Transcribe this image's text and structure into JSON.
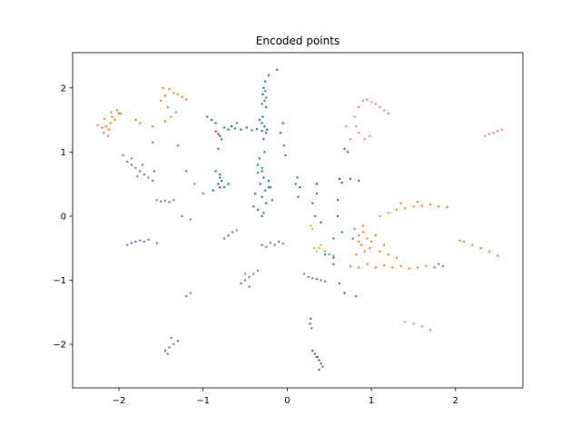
{
  "chart_data": {
    "type": "scatter",
    "title": "Encoded points",
    "xlabel": "",
    "ylabel": "",
    "xlim": [
      -2.55,
      2.8
    ],
    "ylim": [
      -2.68,
      2.55
    ],
    "grid": false,
    "x_ticks": [
      -2,
      -1,
      0,
      1,
      2
    ],
    "y_ticks": [
      -2,
      -1,
      0,
      1,
      2
    ],
    "tick_labels_x": [
      "−2",
      "−1",
      "0",
      "1",
      "2"
    ],
    "tick_labels_y": [
      "−2",
      "−1",
      "0",
      "1",
      "2"
    ],
    "series": [
      {
        "color": "#1f77b4",
        "points": [
          [
            -0.28,
            2.0
          ],
          [
            -0.26,
            1.95
          ],
          [
            -0.29,
            1.9
          ],
          [
            -0.25,
            1.85
          ],
          [
            -0.27,
            1.8
          ],
          [
            -0.3,
            1.75
          ],
          [
            -0.26,
            2.1
          ],
          [
            -0.22,
            2.2
          ],
          [
            -0.12,
            2.28
          ],
          [
            -0.25,
            1.7
          ],
          [
            -0.3,
            1.45
          ],
          [
            -0.27,
            1.4
          ],
          [
            -0.25,
            1.3
          ],
          [
            -0.28,
            1.2
          ],
          [
            -0.33,
            1.5
          ],
          [
            -0.29,
            1.55
          ],
          [
            -0.75,
            1.38
          ],
          [
            -0.7,
            1.35
          ],
          [
            -0.62,
            1.37
          ],
          [
            -0.55,
            1.35
          ],
          [
            -0.48,
            1.38
          ],
          [
            -0.42,
            1.34
          ],
          [
            -0.36,
            1.36
          ],
          [
            -0.3,
            1.33
          ],
          [
            -0.24,
            1.35
          ],
          [
            -0.66,
            1.4
          ],
          [
            -0.95,
            1.55
          ],
          [
            -0.9,
            1.5
          ],
          [
            -0.85,
            1.45
          ],
          [
            -0.8,
            1.25
          ],
          [
            -0.78,
            1.2
          ],
          [
            -0.82,
            1.05
          ],
          [
            -0.85,
            0.7
          ],
          [
            -0.8,
            0.65
          ],
          [
            -0.78,
            0.55
          ],
          [
            -0.82,
            0.5
          ],
          [
            -0.75,
            0.45
          ],
          [
            -0.88,
            0.4
          ],
          [
            -0.8,
            0.6
          ],
          [
            -0.7,
            0.5
          ],
          [
            -0.35,
            0.8
          ],
          [
            -0.3,
            0.7
          ],
          [
            -0.28,
            0.6
          ],
          [
            -0.32,
            0.5
          ],
          [
            -0.26,
            0.4
          ],
          [
            -0.3,
            0.3
          ],
          [
            -0.25,
            0.2
          ],
          [
            -0.35,
            0.1
          ],
          [
            -0.28,
            0.05
          ],
          [
            -0.3,
            0.0
          ],
          [
            -0.22,
            0.55
          ],
          [
            -0.2,
            0.45
          ],
          [
            -0.38,
            0.35
          ],
          [
            -0.4,
            0.15
          ],
          [
            -0.18,
            0.25
          ],
          [
            -0.33,
            0.9
          ],
          [
            -0.27,
            1.0
          ],
          [
            -0.05,
            1.45
          ],
          [
            -0.08,
            1.3
          ],
          [
            -0.04,
            1.1
          ],
          [
            -0.02,
            0.95
          ],
          [
            0.12,
            0.6
          ],
          [
            0.1,
            0.5
          ],
          [
            0.15,
            0.45
          ],
          [
            0.13,
            0.3
          ],
          [
            0.35,
            0.35
          ],
          [
            0.3,
            0.2
          ],
          [
            0.33,
            0.0
          ],
          [
            0.4,
            -0.1
          ],
          [
            0.6,
            0.0
          ],
          [
            0.65,
            -0.25
          ],
          [
            0.55,
            -0.35
          ],
          [
            0.45,
            -0.6
          ],
          [
            0.55,
            -0.75
          ],
          [
            0.62,
            -1.05
          ],
          [
            0.68,
            -1.2
          ],
          [
            0.85,
            0.55
          ],
          [
            0.75,
            0.58
          ]
        ]
      },
      {
        "color": "#ff7f0e",
        "points": [
          [
            -2.15,
            1.4
          ],
          [
            -2.12,
            1.35
          ],
          [
            -2.18,
            1.3
          ],
          [
            -2.1,
            1.45
          ],
          [
            -2.05,
            1.5
          ],
          [
            -2.08,
            1.55
          ],
          [
            -2.0,
            1.6
          ],
          [
            -2.2,
            1.38
          ],
          [
            -2.25,
            1.42
          ],
          [
            -2.13,
            1.25
          ],
          [
            -2.17,
            1.52
          ],
          [
            -2.02,
            1.65
          ],
          [
            -1.98,
            1.6
          ],
          [
            -2.09,
            1.62
          ],
          [
            -1.48,
            2.0
          ],
          [
            -1.4,
            1.98
          ],
          [
            -1.35,
            1.92
          ],
          [
            -1.3,
            1.9
          ],
          [
            -1.25,
            1.86
          ],
          [
            -1.2,
            1.82
          ],
          [
            -1.45,
            1.88
          ],
          [
            -1.5,
            1.8
          ],
          [
            -1.42,
            1.7
          ],
          [
            -1.38,
            1.55
          ],
          [
            -1.45,
            1.48
          ],
          [
            -1.32,
            1.62
          ],
          [
            -1.75,
            1.45
          ],
          [
            -1.6,
            1.4
          ],
          [
            -1.8,
            1.5
          ],
          [
            0.8,
            -0.2
          ],
          [
            0.85,
            -0.3
          ],
          [
            0.9,
            -0.25
          ],
          [
            0.95,
            -0.35
          ],
          [
            1.0,
            -0.4
          ],
          [
            0.88,
            -0.45
          ],
          [
            0.92,
            -0.55
          ],
          [
            0.82,
            -0.6
          ],
          [
            1.05,
            -0.3
          ],
          [
            0.98,
            -0.5
          ],
          [
            0.9,
            -0.15
          ],
          [
            0.85,
            -0.4
          ],
          [
            0.75,
            -0.78
          ],
          [
            0.85,
            -0.8
          ],
          [
            0.95,
            -0.75
          ],
          [
            1.05,
            -0.8
          ],
          [
            1.15,
            -0.77
          ],
          [
            1.25,
            -0.8
          ],
          [
            1.35,
            -0.78
          ],
          [
            1.45,
            -0.82
          ],
          [
            1.55,
            -0.8
          ],
          [
            1.65,
            -0.78
          ],
          [
            1.75,
            -0.8
          ],
          [
            1.1,
            0.0
          ],
          [
            1.2,
            0.05
          ],
          [
            1.3,
            0.1
          ],
          [
            1.4,
            0.12
          ],
          [
            1.5,
            0.15
          ],
          [
            1.6,
            0.16
          ],
          [
            1.7,
            0.18
          ],
          [
            1.8,
            0.15
          ],
          [
            1.9,
            0.14
          ],
          [
            1.35,
            0.2
          ],
          [
            1.55,
            0.22
          ],
          [
            2.1,
            -0.4
          ],
          [
            2.2,
            -0.45
          ],
          [
            2.3,
            -0.5
          ],
          [
            2.4,
            -0.55
          ],
          [
            2.5,
            -0.62
          ],
          [
            2.05,
            -0.38
          ],
          [
            1.1,
            -0.55
          ],
          [
            1.2,
            -0.6
          ],
          [
            1.3,
            -0.65
          ],
          [
            1.15,
            -0.45
          ]
        ]
      },
      {
        "color": "#2ca02c",
        "points": [
          [
            -0.35,
            0.68
          ],
          [
            -0.22,
            0.45
          ],
          [
            -0.6,
            1.45
          ],
          [
            0.78,
            -0.35
          ],
          [
            0.82,
            -1.25
          ],
          [
            -0.3,
            0.75
          ]
        ]
      },
      {
        "color": "#d62728",
        "points": [
          [
            -0.85,
            1.32
          ],
          [
            -0.82,
            1.28
          ],
          [
            -0.8,
            0.45
          ],
          [
            0.62,
            0.58
          ],
          [
            0.65,
            0.52
          ],
          [
            0.6,
            0.25
          ],
          [
            0.68,
            1.05
          ],
          [
            0.72,
            1.0
          ],
          [
            0.35,
            0.5
          ],
          [
            0.55,
            -0.65
          ]
        ]
      },
      {
        "color": "#9467bd",
        "points": [
          [
            -1.95,
            0.95
          ],
          [
            -1.9,
            0.85
          ],
          [
            -1.85,
            0.8
          ],
          [
            -1.8,
            0.75
          ],
          [
            -1.75,
            0.7
          ],
          [
            -1.7,
            0.65
          ],
          [
            -1.65,
            0.6
          ],
          [
            -1.6,
            0.55
          ],
          [
            -1.85,
            0.9
          ],
          [
            -1.72,
            0.8
          ],
          [
            -1.78,
            0.62
          ],
          [
            -1.58,
            0.7
          ],
          [
            -1.55,
            0.25
          ],
          [
            -1.5,
            0.23
          ],
          [
            -1.45,
            0.24
          ],
          [
            -1.4,
            0.22
          ],
          [
            -1.35,
            0.25
          ],
          [
            -1.9,
            -0.45
          ],
          [
            -1.85,
            -0.42
          ],
          [
            -1.8,
            -0.4
          ],
          [
            -1.75,
            -0.38
          ],
          [
            -1.7,
            -0.4
          ],
          [
            -1.65,
            -0.37
          ],
          [
            -1.55,
            -0.42
          ],
          [
            -1.45,
            -2.1
          ],
          [
            -1.4,
            -2.05
          ],
          [
            -1.35,
            -2.0
          ],
          [
            -1.3,
            -1.95
          ],
          [
            -1.42,
            -2.15
          ],
          [
            -1.38,
            -1.9
          ],
          [
            -1.2,
            -1.25
          ],
          [
            -1.15,
            -1.2
          ],
          [
            -0.55,
            -1.05
          ],
          [
            -0.5,
            -1.0
          ],
          [
            -0.45,
            -0.95
          ],
          [
            -0.4,
            -0.9
          ],
          [
            -0.35,
            -0.85
          ],
          [
            -0.5,
            -0.9
          ],
          [
            -0.45,
            -1.1
          ],
          [
            -0.3,
            -0.45
          ],
          [
            -0.25,
            -0.48
          ],
          [
            -0.2,
            -0.42
          ],
          [
            -0.15,
            -0.45
          ],
          [
            -0.1,
            -0.4
          ],
          [
            -0.05,
            -0.43
          ],
          [
            -0.75,
            -0.35
          ],
          [
            -0.7,
            -0.3
          ],
          [
            -0.65,
            -0.25
          ],
          [
            -0.6,
            -0.22
          ],
          [
            0.2,
            -0.9
          ],
          [
            0.25,
            -0.95
          ],
          [
            0.3,
            -0.97
          ],
          [
            0.35,
            -0.98
          ],
          [
            0.4,
            -1.0
          ],
          [
            0.45,
            -1.02
          ],
          [
            -1.2,
            0.7
          ],
          [
            -1.1,
            0.5
          ],
          [
            -1.0,
            0.35
          ],
          [
            -1.25,
            0.0
          ],
          [
            -1.15,
            -0.05
          ],
          [
            -1.6,
            1.15
          ],
          [
            -1.3,
            1.1
          ]
        ]
      },
      {
        "color": "#8c564b",
        "points": [
          [
            0.3,
            -2.1
          ],
          [
            0.33,
            -2.15
          ],
          [
            0.36,
            -2.2
          ],
          [
            0.38,
            -2.25
          ],
          [
            0.4,
            -2.3
          ],
          [
            0.42,
            -2.35
          ],
          [
            0.38,
            -2.4
          ],
          [
            0.35,
            -2.2
          ],
          [
            0.28,
            -1.6
          ],
          [
            0.27,
            -1.68
          ],
          [
            0.29,
            -1.75
          ]
        ]
      },
      {
        "color": "#e377c2",
        "points": [
          [
            0.85,
            1.7
          ],
          [
            0.9,
            1.8
          ],
          [
            0.95,
            1.82
          ],
          [
            1.0,
            1.78
          ],
          [
            1.05,
            1.75
          ],
          [
            1.1,
            1.7
          ],
          [
            1.15,
            1.65
          ],
          [
            1.2,
            1.6
          ],
          [
            0.8,
            1.55
          ],
          [
            0.82,
            1.4
          ],
          [
            0.85,
            1.3
          ],
          [
            0.92,
            1.2
          ],
          [
            0.98,
            1.25
          ],
          [
            2.35,
            1.25
          ],
          [
            2.4,
            1.28
          ],
          [
            2.45,
            1.3
          ],
          [
            2.5,
            1.33
          ],
          [
            2.55,
            1.35
          ],
          [
            1.4,
            -1.65
          ],
          [
            1.5,
            -1.68
          ],
          [
            1.6,
            -1.72
          ],
          [
            1.7,
            -1.78
          ],
          [
            0.7,
            1.4
          ],
          [
            0.75,
            1.2
          ]
        ]
      },
      {
        "color": "#7f7f7f",
        "points": [
          [
            1.8,
            -0.75
          ],
          [
            1.85,
            -0.78
          ],
          [
            1.75,
            -0.8
          ]
        ]
      },
      {
        "color": "#bcbd22",
        "points": [
          [
            0.32,
            -0.5
          ],
          [
            0.35,
            -0.55
          ],
          [
            0.38,
            -0.5
          ],
          [
            0.45,
            -0.55
          ],
          [
            0.28,
            -0.15
          ],
          [
            0.3,
            -0.2
          ],
          [
            0.4,
            -0.45
          ]
        ]
      },
      {
        "color": "#17becf",
        "points": [
          [
            0.5,
            -0.6
          ],
          [
            0.55,
            -0.62
          ]
        ]
      }
    ]
  }
}
